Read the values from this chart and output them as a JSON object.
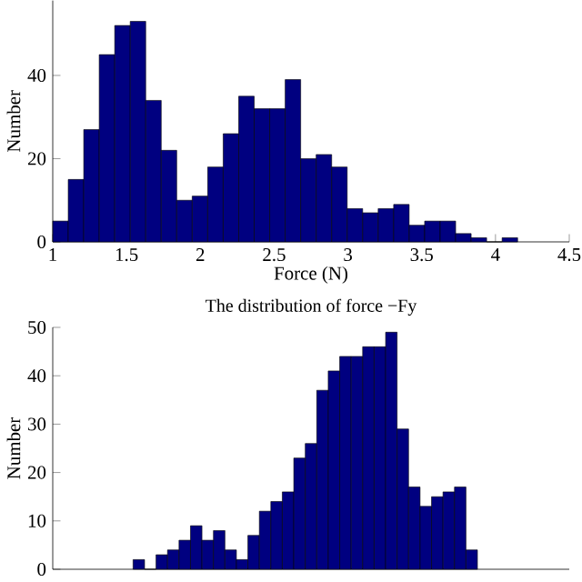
{
  "chart_data": [
    {
      "type": "histogram",
      "xlabel": "Force (N)",
      "ylabel": "Number",
      "color": "#000080",
      "bins": [
        1.0,
        1.105,
        1.21,
        1.315,
        1.42,
        1.525,
        1.63,
        1.735,
        1.84,
        1.945,
        2.05,
        2.155,
        2.26,
        2.365,
        2.47,
        2.575,
        2.68,
        2.785,
        2.89,
        2.995,
        3.1,
        3.205,
        3.31,
        3.415,
        3.52,
        3.625,
        3.73,
        3.835,
        3.94,
        4.045,
        4.15
      ],
      "values": [
        5,
        15,
        27,
        45,
        52,
        53,
        34,
        22,
        10,
        11,
        18,
        26,
        35,
        32,
        32,
        39,
        20,
        21,
        18,
        8,
        7,
        8,
        9,
        4,
        5,
        5,
        2,
        1,
        0,
        1
      ],
      "xlim": [
        1,
        4.5
      ],
      "xticks": [
        1,
        1.5,
        2,
        2.5,
        3,
        3.5,
        4,
        4.5
      ],
      "ylim": [
        0,
        58
      ],
      "yticks": [
        0,
        20,
        40
      ],
      "grid": false
    },
    {
      "type": "bar",
      "title": "The distribution of force −Fy",
      "ylabel": "Number",
      "color": "#000080",
      "categories": [
        null,
        null,
        null,
        null,
        null,
        null,
        null,
        null,
        null,
        null,
        null,
        null,
        null,
        null,
        null,
        null,
        null,
        null,
        null,
        null,
        null,
        null,
        null,
        null,
        null,
        null,
        null,
        null,
        null,
        null,
        null,
        null,
        null,
        null,
        null,
        null,
        null,
        null,
        null,
        null,
        null,
        null,
        null,
        null,
        null
      ],
      "values": [
        null,
        null,
        null,
        null,
        null,
        null,
        null,
        2,
        0,
        3,
        4,
        6,
        9,
        6,
        8,
        4,
        2,
        7,
        12,
        14,
        16,
        23,
        26,
        37,
        41,
        44,
        44,
        46,
        46,
        49,
        29,
        17,
        13,
        15,
        16,
        17,
        4,
        null,
        null,
        null,
        null,
        null,
        null,
        null,
        null
      ],
      "ylim": [
        0,
        50
      ],
      "yticks": [
        0,
        10,
        20,
        30,
        40,
        50
      ],
      "tick_labels": "y",
      "grid": false
    }
  ]
}
